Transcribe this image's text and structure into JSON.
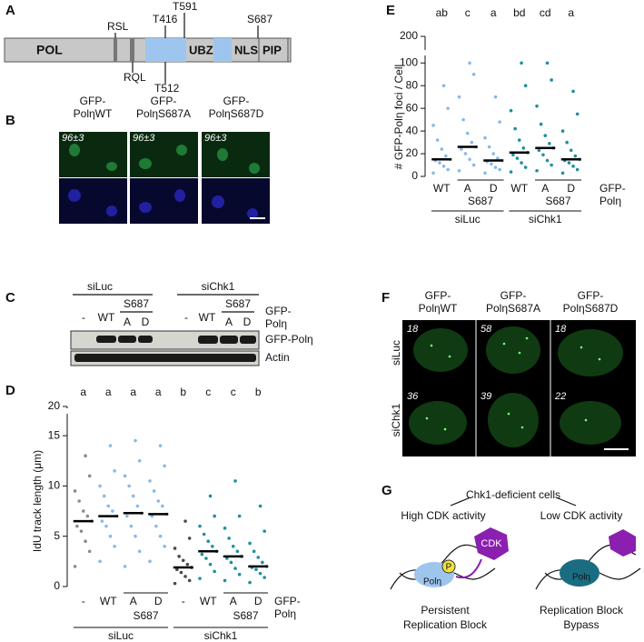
{
  "panel_a": {
    "label": "A",
    "domains": [
      "POL",
      "UBZ",
      "NLS",
      "PIP"
    ],
    "sites_top": [
      "RSL",
      "T416",
      "T591",
      "S687"
    ],
    "sites_bottom": [
      "RQL",
      "T512"
    ]
  },
  "panel_b": {
    "label": "B",
    "columns": [
      {
        "line1": "GFP-",
        "line2": "PolηWT",
        "value": "96±3"
      },
      {
        "line1": "GFP-",
        "line2": "PolηS687A",
        "value": "96±3"
      },
      {
        "line1": "GFP-",
        "line2": "PolηS687D",
        "value": "96±3"
      }
    ]
  },
  "panel_c": {
    "label": "C",
    "groups": [
      "siLuc",
      "siChk1"
    ],
    "lanes": [
      "-",
      "WT",
      "A",
      "D",
      "-",
      "WT",
      "A",
      "D"
    ],
    "subgroup": "S687",
    "legend_line1": "GFP-",
    "legend_line2": "Polη",
    "rows": [
      "GFP-Polη",
      "Actin"
    ]
  },
  "panel_f": {
    "label": "F",
    "columns": [
      {
        "line1": "GFP-",
        "line2": "PolηWT"
      },
      {
        "line1": "GFP-",
        "line2": "PolηS687A"
      },
      {
        "line1": "GFP-",
        "line2": "PolηS687D"
      }
    ],
    "rows": [
      "siLuc",
      "siChk1"
    ],
    "values": [
      [
        "18",
        "58",
        "18"
      ],
      [
        "36",
        "39",
        "22"
      ]
    ]
  },
  "panel_g": {
    "label": "G",
    "title": "Chk1-deficient cells",
    "left": {
      "heading": "High CDK activity",
      "kinase": "CDK",
      "phospho": "P",
      "protein": "Polη",
      "caption1": "Persistent",
      "caption2": "Replication Block"
    },
    "right": {
      "heading": "Low CDK activity",
      "protein": "Polη",
      "caption1": "Replication Block",
      "caption2": "Bypass"
    }
  },
  "chart_data": [
    {
      "type": "dot",
      "panel": "D",
      "ylabel": "IdU track length (μm)",
      "categories": [
        "-",
        "WT",
        "A",
        "D",
        "-",
        "WT",
        "A",
        "D"
      ],
      "groups": [
        "siLuc",
        "siChk1"
      ],
      "subgroup": "S687",
      "legend_line1": "GFP-",
      "legend_line2": "Polη",
      "significance": [
        "a",
        "a",
        "a",
        "a",
        "b",
        "c",
        "c",
        "b"
      ],
      "colors": [
        "#8c8c8c",
        "#8ab8e6",
        "#8ab8e6",
        "#8ab8e6",
        "#4a4a4a",
        "#1f8f9c",
        "#1f8f9c",
        "#1f8f9c"
      ],
      "medians": [
        6.5,
        7,
        7.3,
        7.2,
        1.9,
        3.5,
        3,
        2
      ],
      "points": [
        [
          2,
          3.5,
          4.5,
          5.5,
          6,
          6.5,
          7,
          7.5,
          8.5,
          9.5,
          11,
          13
        ],
        [
          2.5,
          4,
          5,
          6,
          6.5,
          7,
          7.5,
          8,
          9,
          10,
          11.5,
          14
        ],
        [
          2,
          3.5,
          5,
          6,
          7,
          7.3,
          8,
          9,
          10,
          11,
          12.5,
          14.5
        ],
        [
          2.5,
          4,
          5,
          6,
          7,
          7.2,
          8,
          8.5,
          9.5,
          10.5,
          12,
          14
        ],
        [
          0.3,
          0.6,
          1,
          1.4,
          1.7,
          1.9,
          2.2,
          2.6,
          3,
          3.8,
          4.8,
          6.5
        ],
        [
          0.8,
          1.5,
          2.2,
          2.8,
          3.2,
          3.5,
          4,
          4.5,
          5.2,
          6,
          7,
          9
        ],
        [
          0.6,
          1.2,
          1.8,
          2.4,
          2.8,
          3,
          3.5,
          4,
          4.8,
          5.8,
          7,
          10.5
        ],
        [
          0.4,
          0.9,
          1.3,
          1.7,
          1.9,
          2,
          2.4,
          2.9,
          3.5,
          4.3,
          5.5,
          8
        ]
      ],
      "ylim": [
        0,
        17
      ],
      "yticks": [
        0,
        5,
        10,
        15
      ],
      "ybreak_tick": 20
    },
    {
      "type": "dot",
      "panel": "E",
      "ylabel": "# GFP-Polη foci / Cell",
      "categories": [
        "WT",
        "A",
        "D",
        "WT",
        "A",
        "D"
      ],
      "groups": [
        "siLuc",
        "siChk1"
      ],
      "subgroup": "S687",
      "legend_line1": "GFP-",
      "legend_line2": "Polη",
      "significance": [
        "ab",
        "c",
        "a",
        "bd",
        "cd",
        "a"
      ],
      "colors": [
        "#8ab8e6",
        "#8ab8e6",
        "#8ab8e6",
        "#1f8f9c",
        "#1f8f9c",
        "#1f8f9c"
      ],
      "medians": [
        15,
        26,
        14,
        21,
        25,
        15
      ],
      "points": [
        [
          3,
          6,
          9,
          12,
          14,
          15,
          18,
          24,
          32,
          45,
          60,
          80
        ],
        [
          5,
          10,
          15,
          20,
          24,
          26,
          30,
          38,
          50,
          70,
          90,
          100
        ],
        [
          3,
          6,
          8,
          11,
          13,
          14,
          16,
          20,
          26,
          34,
          48,
          70
        ],
        [
          4,
          8,
          12,
          16,
          19,
          21,
          25,
          32,
          42,
          58,
          80,
          100
        ],
        [
          5,
          10,
          14,
          19,
          23,
          25,
          29,
          36,
          46,
          62,
          85,
          100
        ],
        [
          3,
          6,
          9,
          12,
          14,
          15,
          18,
          23,
          30,
          40,
          55,
          75
        ]
      ],
      "ylim": [
        0,
        105
      ],
      "yticks": [
        0,
        20,
        40,
        60,
        80,
        100
      ],
      "ybreak_tick": 200
    }
  ]
}
